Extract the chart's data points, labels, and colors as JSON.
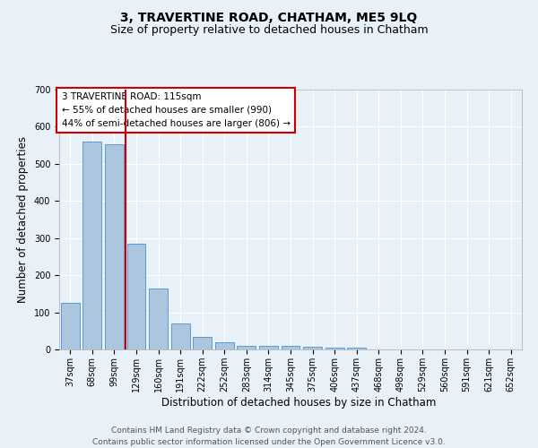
{
  "title": "3, TRAVERTINE ROAD, CHATHAM, ME5 9LQ",
  "subtitle": "Size of property relative to detached houses in Chatham",
  "xlabel": "Distribution of detached houses by size in Chatham",
  "ylabel": "Number of detached properties",
  "categories": [
    "37sqm",
    "68sqm",
    "99sqm",
    "129sqm",
    "160sqm",
    "191sqm",
    "222sqm",
    "252sqm",
    "283sqm",
    "314sqm",
    "345sqm",
    "375sqm",
    "406sqm",
    "437sqm",
    "468sqm",
    "498sqm",
    "529sqm",
    "560sqm",
    "591sqm",
    "621sqm",
    "652sqm"
  ],
  "values": [
    125,
    560,
    553,
    285,
    163,
    70,
    33,
    20,
    9,
    10,
    9,
    7,
    5,
    4,
    0,
    0,
    0,
    0,
    0,
    0,
    0
  ],
  "bar_color": "#adc6e0",
  "bar_edge_color": "#5b9bd5",
  "red_line_x": 2.5,
  "annotation_text": "3 TRAVERTINE ROAD: 115sqm\n← 55% of detached houses are smaller (990)\n44% of semi-detached houses are larger (806) →",
  "annotation_box_color": "white",
  "annotation_box_edge_color": "#cc0000",
  "red_line_color": "#cc0000",
  "ylim": [
    0,
    700
  ],
  "yticks": [
    0,
    100,
    200,
    300,
    400,
    500,
    600,
    700
  ],
  "footer_line1": "Contains HM Land Registry data © Crown copyright and database right 2024.",
  "footer_line2": "Contains public sector information licensed under the Open Government Licence v3.0.",
  "bg_color": "#e8f0f8",
  "grid_color": "#ffffff",
  "title_fontsize": 10,
  "subtitle_fontsize": 9,
  "axis_label_fontsize": 8.5,
  "tick_fontsize": 7,
  "annotation_fontsize": 7.5,
  "footer_fontsize": 6.5
}
